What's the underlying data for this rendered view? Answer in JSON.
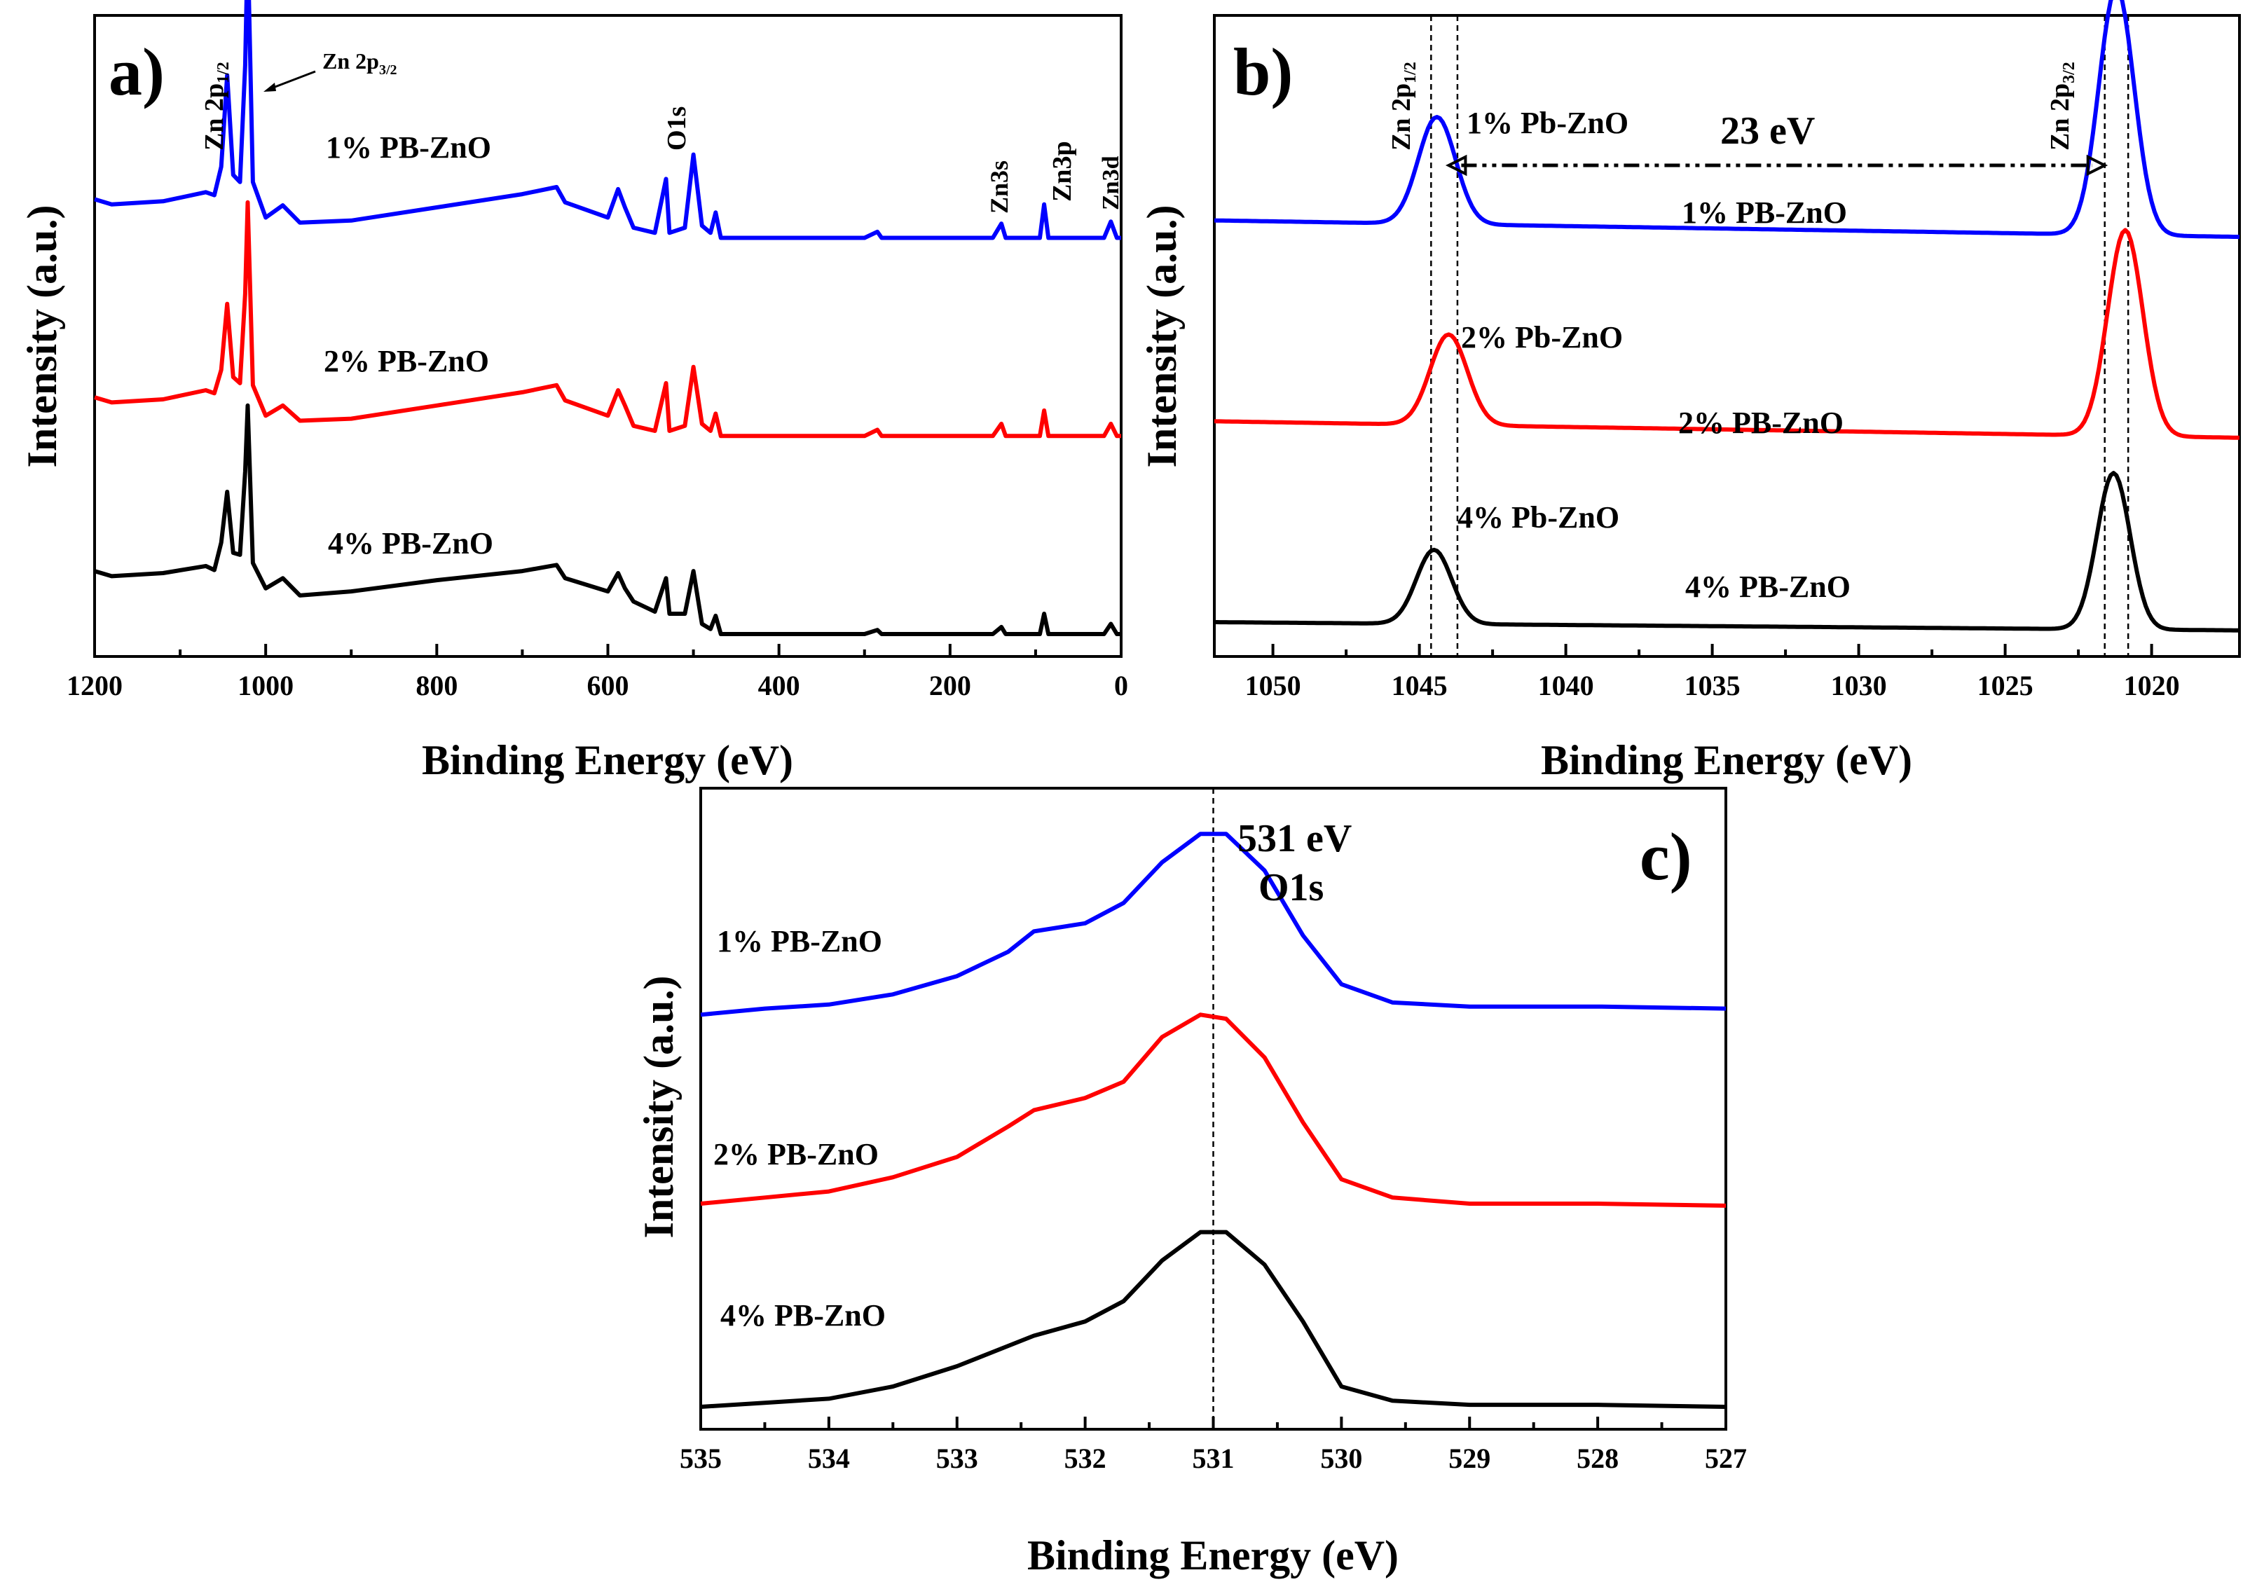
{
  "chart_data": [
    {
      "id": "a",
      "type": "line",
      "panel_label": "a)",
      "xlabel": "Binding Energy (eV)",
      "ylabel": "Intensity (a.u.)",
      "xlim": [
        1200,
        0
      ],
      "x_ticks": [
        1200,
        1000,
        800,
        600,
        400,
        200,
        0
      ],
      "y_ticks_shown": false,
      "annotations": {
        "zn2p12": {
          "main": "Zn 2p",
          "sub": "1/2"
        },
        "zn2p32": {
          "main": "Zn 2p",
          "sub": "3/2"
        },
        "o1s": "O1s",
        "zn3s": "Zn3s",
        "zn3p": "Zn3p",
        "zn3d": "Zn3d"
      },
      "series": [
        {
          "name": "1% PB-ZnO",
          "color": "#0000ff",
          "offset": 2.0,
          "points": [
            [
              1200,
              0.38
            ],
            [
              1180,
              0.33
            ],
            [
              1120,
              0.36
            ],
            [
              1070,
              0.45
            ],
            [
              1060,
              0.42
            ],
            [
              1052,
              0.7
            ],
            [
              1045,
              1.6
            ],
            [
              1038,
              0.62
            ],
            [
              1030,
              0.55
            ],
            [
              1024,
              1.7
            ],
            [
              1021,
              2.9
            ],
            [
              1015,
              0.55
            ],
            [
              1000,
              0.2
            ],
            [
              980,
              0.32
            ],
            [
              960,
              0.15
            ],
            [
              900,
              0.17
            ],
            [
              800,
              0.3
            ],
            [
              700,
              0.43
            ],
            [
              660,
              0.5
            ],
            [
              650,
              0.35
            ],
            [
              600,
              0.2
            ],
            [
              588,
              0.48
            ],
            [
              580,
              0.3
            ],
            [
              570,
              0.1
            ],
            [
              545,
              0.05
            ],
            [
              532,
              0.58
            ],
            [
              528,
              0.05
            ],
            [
              510,
              0.1
            ],
            [
              500,
              0.82
            ],
            [
              490,
              0.12
            ],
            [
              480,
              0.05
            ],
            [
              474,
              0.25
            ],
            [
              468,
              0.0
            ],
            [
              400,
              0.0
            ],
            [
              300,
              0.0
            ],
            [
              285,
              0.06
            ],
            [
              280,
              0.0
            ],
            [
              150,
              0.0
            ],
            [
              140,
              0.14
            ],
            [
              135,
              0.0
            ],
            [
              95,
              0.0
            ],
            [
              90,
              0.33
            ],
            [
              85,
              0.0
            ],
            [
              20,
              0.0
            ],
            [
              12,
              0.16
            ],
            [
              5,
              0.0
            ],
            [
              0,
              0.0
            ]
          ]
        },
        {
          "name": "2% PB-ZnO",
          "color": "#ff0000",
          "offset": 1.0,
          "points": [
            [
              1200,
              0.38
            ],
            [
              1180,
              0.33
            ],
            [
              1120,
              0.36
            ],
            [
              1070,
              0.45
            ],
            [
              1060,
              0.42
            ],
            [
              1052,
              0.65
            ],
            [
              1045,
              1.3
            ],
            [
              1038,
              0.58
            ],
            [
              1030,
              0.52
            ],
            [
              1024,
              1.4
            ],
            [
              1021,
              2.3
            ],
            [
              1015,
              0.5
            ],
            [
              1000,
              0.2
            ],
            [
              980,
              0.3
            ],
            [
              960,
              0.15
            ],
            [
              900,
              0.17
            ],
            [
              800,
              0.3
            ],
            [
              700,
              0.43
            ],
            [
              660,
              0.5
            ],
            [
              650,
              0.35
            ],
            [
              600,
              0.2
            ],
            [
              588,
              0.45
            ],
            [
              580,
              0.3
            ],
            [
              570,
              0.1
            ],
            [
              545,
              0.05
            ],
            [
              532,
              0.52
            ],
            [
              528,
              0.05
            ],
            [
              510,
              0.1
            ],
            [
              500,
              0.68
            ],
            [
              490,
              0.12
            ],
            [
              480,
              0.05
            ],
            [
              474,
              0.22
            ],
            [
              468,
              0.0
            ],
            [
              400,
              0.0
            ],
            [
              300,
              0.0
            ],
            [
              285,
              0.06
            ],
            [
              280,
              0.0
            ],
            [
              150,
              0.0
            ],
            [
              140,
              0.12
            ],
            [
              135,
              0.0
            ],
            [
              95,
              0.0
            ],
            [
              90,
              0.25
            ],
            [
              85,
              0.0
            ],
            [
              20,
              0.0
            ],
            [
              12,
              0.12
            ],
            [
              5,
              0.0
            ],
            [
              0,
              0.0
            ]
          ]
        },
        {
          "name": "4% PB-ZnO",
          "color": "#000000",
          "offset": 0.0,
          "points": [
            [
              1200,
              0.62
            ],
            [
              1180,
              0.57
            ],
            [
              1120,
              0.6
            ],
            [
              1070,
              0.67
            ],
            [
              1060,
              0.63
            ],
            [
              1052,
              0.9
            ],
            [
              1045,
              1.4
            ],
            [
              1038,
              0.8
            ],
            [
              1030,
              0.78
            ],
            [
              1024,
              1.6
            ],
            [
              1021,
              2.25
            ],
            [
              1015,
              0.7
            ],
            [
              1000,
              0.45
            ],
            [
              980,
              0.55
            ],
            [
              960,
              0.38
            ],
            [
              900,
              0.42
            ],
            [
              800,
              0.53
            ],
            [
              700,
              0.62
            ],
            [
              660,
              0.68
            ],
            [
              650,
              0.55
            ],
            [
              600,
              0.42
            ],
            [
              588,
              0.6
            ],
            [
              580,
              0.45
            ],
            [
              570,
              0.32
            ],
            [
              545,
              0.22
            ],
            [
              532,
              0.55
            ],
            [
              528,
              0.2
            ],
            [
              510,
              0.2
            ],
            [
              500,
              0.62
            ],
            [
              490,
              0.1
            ],
            [
              480,
              0.05
            ],
            [
              474,
              0.18
            ],
            [
              468,
              0.0
            ],
            [
              400,
              0.0
            ],
            [
              300,
              0.0
            ],
            [
              285,
              0.04
            ],
            [
              280,
              0.0
            ],
            [
              150,
              0.0
            ],
            [
              140,
              0.07
            ],
            [
              135,
              0.0
            ],
            [
              95,
              0.0
            ],
            [
              90,
              0.2
            ],
            [
              85,
              0.0
            ],
            [
              20,
              0.0
            ],
            [
              12,
              0.1
            ],
            [
              5,
              0.0
            ],
            [
              0,
              0.0
            ]
          ]
        }
      ],
      "labels": [
        "1% PB-ZnO",
        "2% PB-ZnO",
        "4% PB-ZnO"
      ]
    },
    {
      "id": "b",
      "type": "line",
      "panel_label": "b)",
      "xlabel": "Binding Energy (eV)",
      "ylabel": "Intensity (a.u.)",
      "xlim": [
        1052,
        1017
      ],
      "x_ticks": [
        1050,
        1045,
        1040,
        1035,
        1030,
        1025,
        1020
      ],
      "y_ticks_shown": false,
      "reference_lines": [
        1044.6,
        1043.7,
        1021.6,
        1020.8
      ],
      "annotations": {
        "zn2p12": {
          "main": "Zn 2p",
          "sub": "1/2"
        },
        "zn2p32": {
          "main": "Zn 2p",
          "sub": "3/2"
        },
        "splitting": "23 eV",
        "arrow_from": 1044.0,
        "arrow_to": 1021.6
      },
      "series": [
        {
          "name": "1% PB-ZnO",
          "color": "#0000ff",
          "offset": 2.0,
          "base_left": 0.0,
          "base_right": -0.1,
          "peak1": {
            "x": 1044.4,
            "h": 0.65,
            "w": 0.9
          },
          "peak2": {
            "x": 1021.2,
            "h": 1.5,
            "w": 0.85
          }
        },
        {
          "name": "2% PB-ZnO",
          "color": "#ff0000",
          "offset": 1.0,
          "base_left": 0.0,
          "base_right": -0.1,
          "peak1": {
            "x": 1044.0,
            "h": 0.55,
            "w": 0.9
          },
          "peak2": {
            "x": 1020.9,
            "h": 1.25,
            "w": 0.85
          }
        },
        {
          "name": "4% PB-ZnO",
          "color": "#000000",
          "offset": 0.0,
          "base_left": 0.0,
          "base_right": -0.05,
          "peak1": {
            "x": 1044.5,
            "h": 0.45,
            "w": 0.85
          },
          "peak2": {
            "x": 1021.3,
            "h": 0.95,
            "w": 0.8
          }
        }
      ],
      "labels": [
        "1% PB-ZnO",
        "2% PB-ZnO",
        "4% PB-ZnO"
      ],
      "sublabels": [
        "1% Pb-ZnO",
        "2% Pb-ZnO",
        "4% Pb-ZnO"
      ]
    },
    {
      "id": "c",
      "type": "line",
      "panel_label": "c)",
      "xlabel": "Binding Energy (eV)",
      "ylabel": "Intensity (a.u.)",
      "xlim": [
        535,
        527
      ],
      "x_ticks": [
        535,
        534,
        533,
        532,
        531,
        530,
        529,
        528,
        527
      ],
      "y_ticks_shown": false,
      "reference_line": 531.0,
      "annotations": {
        "energy": "531 eV",
        "peak": "O1s"
      },
      "series": [
        {
          "name": "1% PB-ZnO",
          "color": "#0000ff",
          "points": [
            [
              535,
              1.93
            ],
            [
              534.5,
              1.96
            ],
            [
              534,
              1.98
            ],
            [
              533.5,
              2.03
            ],
            [
              533,
              2.12
            ],
            [
              532.6,
              2.24
            ],
            [
              532.4,
              2.34
            ],
            [
              532,
              2.38
            ],
            [
              531.7,
              2.48
            ],
            [
              531.4,
              2.68
            ],
            [
              531.1,
              2.82
            ],
            [
              530.9,
              2.82
            ],
            [
              530.6,
              2.64
            ],
            [
              530.3,
              2.32
            ],
            [
              530,
              2.08
            ],
            [
              529.6,
              1.99
            ],
            [
              529,
              1.97
            ],
            [
              528,
              1.97
            ],
            [
              527,
              1.96
            ]
          ]
        },
        {
          "name": "2% PB-ZnO",
          "color": "#ff0000",
          "points": [
            [
              535,
              1.0
            ],
            [
              534.5,
              1.03
            ],
            [
              534,
              1.06
            ],
            [
              533.5,
              1.13
            ],
            [
              533,
              1.23
            ],
            [
              532.6,
              1.38
            ],
            [
              532.4,
              1.46
            ],
            [
              532,
              1.52
            ],
            [
              531.7,
              1.6
            ],
            [
              531.4,
              1.82
            ],
            [
              531.1,
              1.93
            ],
            [
              530.9,
              1.91
            ],
            [
              530.6,
              1.72
            ],
            [
              530.3,
              1.4
            ],
            [
              530,
              1.12
            ],
            [
              529.6,
              1.03
            ],
            [
              529,
              1.0
            ],
            [
              528,
              1.0
            ],
            [
              527,
              0.99
            ]
          ]
        },
        {
          "name": "4% PB-ZnO",
          "color": "#000000",
          "points": [
            [
              535,
              0.0
            ],
            [
              534.5,
              0.02
            ],
            [
              534,
              0.04
            ],
            [
              533.5,
              0.1
            ],
            [
              533,
              0.2
            ],
            [
              532.6,
              0.3
            ],
            [
              532.4,
              0.35
            ],
            [
              532,
              0.42
            ],
            [
              531.7,
              0.52
            ],
            [
              531.4,
              0.72
            ],
            [
              531.1,
              0.86
            ],
            [
              530.9,
              0.86
            ],
            [
              530.6,
              0.7
            ],
            [
              530.3,
              0.42
            ],
            [
              530,
              0.1
            ],
            [
              529.6,
              0.03
            ],
            [
              529,
              0.01
            ],
            [
              528,
              0.01
            ],
            [
              527,
              0.0
            ]
          ]
        }
      ],
      "labels": [
        "1% PB-ZnO",
        "2% PB-ZnO",
        "4% PB-ZnO"
      ]
    }
  ]
}
